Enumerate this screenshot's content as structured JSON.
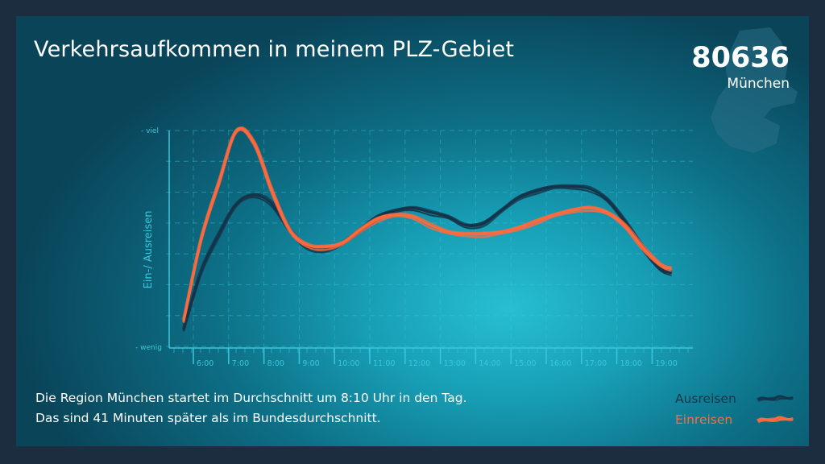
{
  "title": "Verkehrsaufkommen in meinem PLZ-Gebiet",
  "plz": "80636",
  "city": "München",
  "caption": {
    "line1": "Die Region München startet im Durchschnitt um 8:10 Uhr in den Tag.",
    "line2": "Das sind 41 Minuten später als im Bundesdurchschnitt."
  },
  "legend": {
    "outbound": "Ausreisen",
    "inbound": "Einreisen"
  },
  "colors": {
    "outbound": "#14344a",
    "inbound": "#ff6a3d",
    "axis": "#39c7dc"
  },
  "chart_data": {
    "type": "line",
    "ylabel": "Ein-/ Ausreisen",
    "y_tick_labels": {
      "top": "- viel",
      "bottom": "- wenig"
    },
    "ylim": [
      0,
      100
    ],
    "x": [
      "6:00",
      "7:00",
      "8:00",
      "9:00",
      "10:00",
      "11:00",
      "12:00",
      "13:00",
      "14:00",
      "15:00",
      "16:00",
      "17:00",
      "18:00",
      "19:00"
    ],
    "series": [
      {
        "name": "Ausreisen",
        "x": [
          5.5,
          6.0,
          6.5,
          7.0,
          7.5,
          8.0,
          8.5,
          9.0,
          9.5,
          10.0,
          10.5,
          11.0,
          11.5,
          12.0,
          12.5,
          13.0,
          13.5,
          14.0,
          14.5,
          15.0,
          15.5,
          16.0,
          16.5,
          17.0,
          17.5,
          18.0,
          18.5,
          19.0,
          19.3
        ],
        "y": [
          8,
          35,
          52,
          66,
          70,
          66,
          54,
          46,
          45,
          48,
          54,
          60,
          63,
          64,
          62,
          60,
          56,
          57,
          63,
          69,
          72,
          74,
          74,
          73,
          68,
          58,
          46,
          36,
          34
        ]
      },
      {
        "name": "Einreisen",
        "x": [
          5.5,
          6.0,
          6.5,
          7.0,
          7.5,
          8.0,
          8.5,
          9.0,
          9.5,
          10.0,
          10.5,
          11.0,
          11.5,
          12.0,
          12.5,
          13.0,
          13.5,
          14.0,
          14.5,
          15.0,
          15.5,
          16.0,
          16.5,
          17.0,
          17.5,
          18.0,
          18.5,
          19.0,
          19.3
        ],
        "y": [
          12,
          50,
          76,
          100,
          94,
          72,
          54,
          47,
          46,
          48,
          54,
          59,
          61,
          60,
          56,
          53,
          52,
          52,
          53,
          55,
          58,
          61,
          63,
          64,
          62,
          56,
          46,
          38,
          36
        ]
      }
    ],
    "grid": true,
    "legend_position": "bottom-right"
  }
}
